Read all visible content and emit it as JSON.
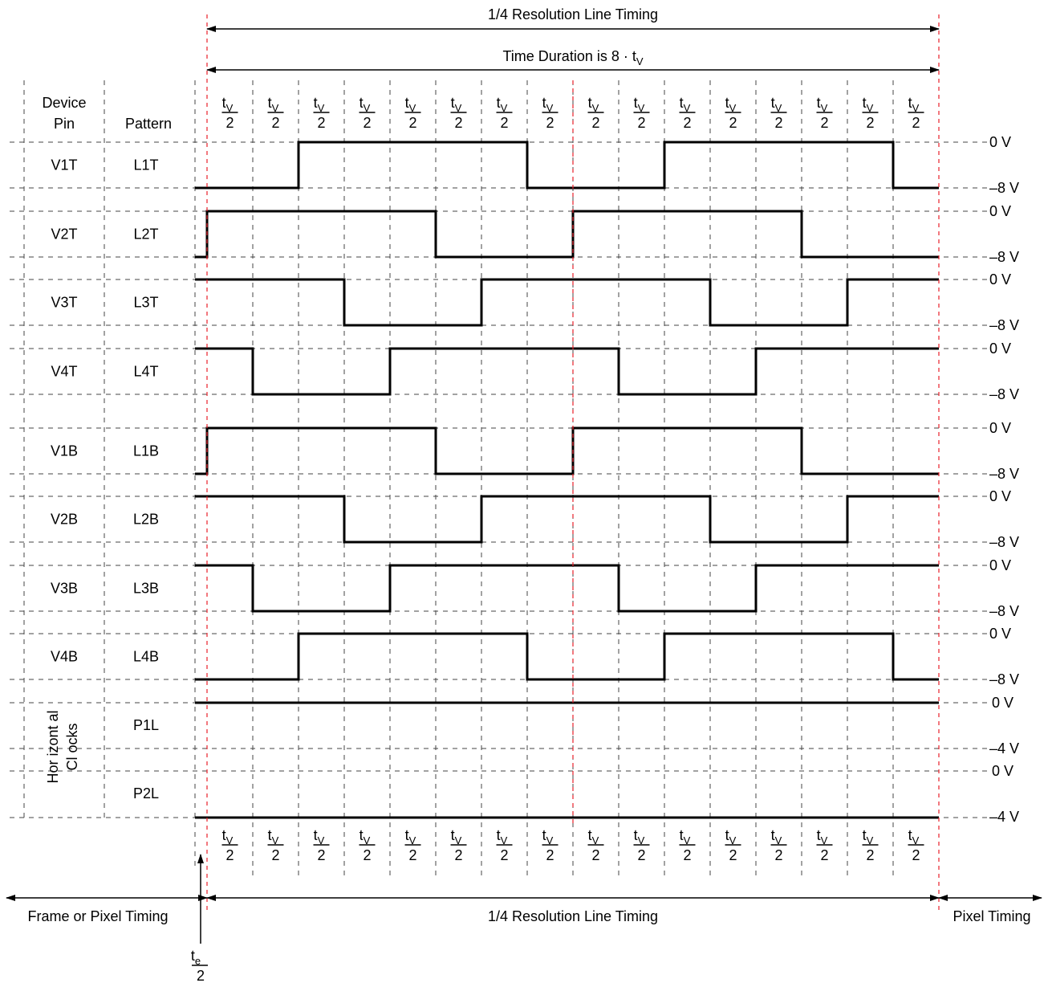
{
  "top": {
    "resolution_label": "1/4 Resolution Line Timing",
    "duration_label_prefix": "Time Duration is 8 · t",
    "duration_label_sub": "V"
  },
  "headers": {
    "device_pin_line1": "Device",
    "device_pin_line2": "Pin",
    "pattern": "Pattern"
  },
  "interval_fraction": {
    "numerator": "t",
    "numerator_sub": "V",
    "denominator": "2",
    "count": 16
  },
  "rows": [
    {
      "pin": "V1T",
      "pattern": "L1T",
      "high": "0 V",
      "low": "–8 V",
      "bits": [
        0,
        0,
        1,
        1,
        1,
        1,
        1,
        0,
        0,
        0,
        1,
        1,
        1,
        1,
        1,
        0
      ]
    },
    {
      "pin": "V2T",
      "pattern": "L2T",
      "high": "0 V",
      "low": "–8 V",
      "bits": [
        1,
        1,
        1,
        1,
        1,
        0,
        0,
        0,
        1,
        1,
        1,
        1,
        1,
        0,
        0,
        0
      ]
    },
    {
      "pin": "V3T",
      "pattern": "L3T",
      "high": "0 V",
      "low": "–8 V",
      "bits": [
        1,
        1,
        1,
        0,
        0,
        0,
        1,
        1,
        1,
        1,
        1,
        0,
        0,
        0,
        1,
        1
      ]
    },
    {
      "pin": "V4T",
      "pattern": "L4T",
      "high": "0 V",
      "low": "–8 V",
      "bits": [
        1,
        0,
        0,
        0,
        1,
        1,
        1,
        1,
        1,
        0,
        0,
        0,
        1,
        1,
        1,
        1
      ]
    },
    {
      "pin": "V1B",
      "pattern": "L1B",
      "high": "0 V",
      "low": "–8 V",
      "bits": [
        1,
        1,
        1,
        1,
        1,
        0,
        0,
        0,
        1,
        1,
        1,
        1,
        1,
        0,
        0,
        0
      ]
    },
    {
      "pin": "V2B",
      "pattern": "L2B",
      "high": "0 V",
      "low": "–8 V",
      "bits": [
        1,
        1,
        1,
        0,
        0,
        0,
        1,
        1,
        1,
        1,
        1,
        0,
        0,
        0,
        1,
        1
      ]
    },
    {
      "pin": "V3B",
      "pattern": "L3B",
      "high": "0 V",
      "low": "–8 V",
      "bits": [
        1,
        0,
        0,
        0,
        1,
        1,
        1,
        1,
        1,
        0,
        0,
        0,
        1,
        1,
        1,
        1
      ]
    },
    {
      "pin": "V4B",
      "pattern": "L4B",
      "high": "0 V",
      "low": "–8 V",
      "bits": [
        0,
        0,
        1,
        1,
        1,
        1,
        1,
        0,
        0,
        0,
        1,
        1,
        1,
        1,
        1,
        0
      ]
    }
  ],
  "horizontal": {
    "pin_label_line1": "Hor izont al",
    "pin_label_line2": "Cl ocks",
    "rows": [
      {
        "pattern": "P1L",
        "high": "0 V",
        "low": "–4 V"
      },
      {
        "pattern": "P2L",
        "high": "0 V",
        "low": "–4 V"
      }
    ]
  },
  "bottom": {
    "left_label": "Frame or Pixel Timing",
    "center_label": "1/4 Resolution Line Timing",
    "right_label": "Pixel Timing",
    "te_numerator": "t",
    "te_sub": "e",
    "te_denominator": "2"
  }
}
